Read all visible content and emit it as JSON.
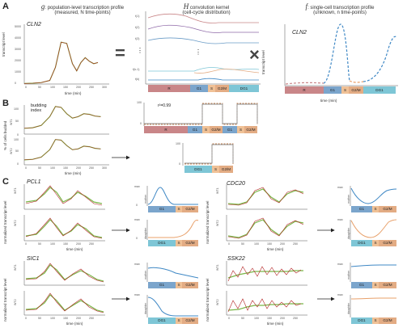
{
  "panels": {
    "a": "A",
    "b": "B",
    "c": "C"
  },
  "header": {
    "g_symbol": "g",
    "g_text": ": population-level transcription profile",
    "g_sub": "(measured, N time-points)",
    "h_symbol": "H",
    "h_text": " convolution kernel",
    "h_sub": "(cell-cycle distribution)",
    "f_symbol": "f",
    "f_text": ": single-cell transcription profile",
    "f_sub": "(unknown, n time-points)"
  },
  "genes": {
    "a_left": "CLN2",
    "a_right": "CLN2",
    "pcl1": "PCL1",
    "cdc20": "CDC20",
    "sic1": "SIC1",
    "ssk22": "SSK22"
  },
  "axes": {
    "time": "time (min)",
    "transcript": "transcript level",
    "pct_budded": "% of cells budded",
    "norm": "normalized transcript level",
    "wt1": "WT1",
    "wt2": "WT2",
    "mother": "mother",
    "daughter": "daughter",
    "max": "max",
    "zero": "0"
  },
  "ticks": {
    "time": [
      "0",
      "50",
      "100",
      "150",
      "200",
      "250",
      "300"
    ],
    "a_y": [
      "0",
      "1000",
      "2000",
      "3000",
      "4000",
      "5000"
    ],
    "b_y": [
      "0",
      "50",
      "100"
    ]
  },
  "kernel_labels": [
    "t(1)",
    "t(2)",
    "t(3)",
    "⋮",
    "t(k-1)",
    "t(k)"
  ],
  "phases": {
    "r": "R",
    "g1": "G1",
    "s": "S",
    "g2m": "G2/M",
    "dg1": "DG1"
  },
  "budding": {
    "title": "budding",
    "title2": "index",
    "r2": "r²=0.99"
  },
  "ops": {
    "equals": "=",
    "times": "×",
    "vdots": "⋮"
  },
  "colors": {
    "R": "#c98688",
    "G1": "#7ba5cc",
    "S": "#f0c196",
    "G2M": "#e3ac84",
    "DG1": "#7ec6d6",
    "measured": "#b22222",
    "fit": "#7ab648",
    "profile_blue": "#3f88c5",
    "profile_orange": "#e8a06a"
  },
  "chart_data": [
    {
      "type": "line",
      "id": "A-g",
      "gene": "CLN2",
      "xlabel": "time (min)",
      "ylabel": "transcript level",
      "x": [
        0,
        30,
        60,
        90,
        110,
        130,
        150,
        170,
        185,
        200,
        215,
        230,
        245,
        260
      ],
      "series": [
        {
          "values": [
            50,
            70,
            120,
            300,
            1400,
            3500,
            3400,
            1700,
            1100,
            1800,
            2200,
            1900,
            1700,
            1800
          ]
        }
      ],
      "xlim": [
        0,
        300
      ],
      "ylim": [
        0,
        5000
      ]
    },
    {
      "type": "line",
      "id": "B-budding",
      "xlabel": "time (min)",
      "ylabel": "% of cells budded",
      "x": [
        0,
        30,
        60,
        90,
        110,
        130,
        150,
        170,
        190,
        210,
        230,
        250,
        270
      ],
      "series": [
        {
          "name": "WT1",
          "values": [
            20,
            22,
            30,
            60,
            95,
            92,
            70,
            55,
            60,
            70,
            68,
            62,
            60
          ]
        },
        {
          "name": "WT2",
          "values": [
            18,
            20,
            28,
            55,
            92,
            90,
            70,
            55,
            58,
            68,
            66,
            60,
            58
          ]
        }
      ],
      "xlim": [
        0,
        300
      ],
      "ylim": [
        0,
        100
      ]
    }
  ]
}
